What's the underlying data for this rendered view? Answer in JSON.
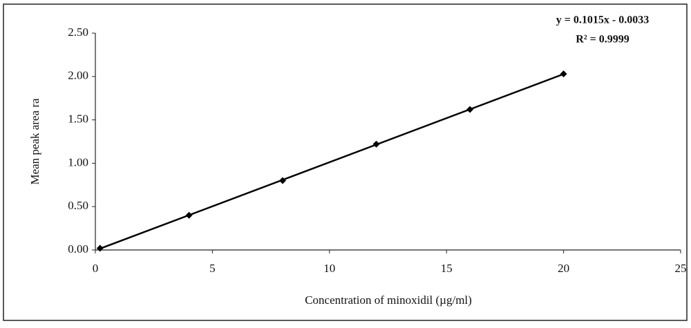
{
  "chart_data": {
    "type": "scatter",
    "x_label": "Concentration of minoxidil (µg/ml)",
    "y_label": "Mean peak area ra",
    "annotations": [
      "y = 0.1015x - 0.0033",
      "R² = 0.9999"
    ],
    "series": [
      {
        "name": "Mean peak area ratio",
        "color": "#000000",
        "x": [
          0.2,
          4,
          8,
          12,
          16,
          20
        ],
        "values": [
          0.02,
          0.4,
          0.8,
          1.22,
          1.62,
          2.03
        ]
      }
    ],
    "trendline": true,
    "xlim": [
      0,
      25
    ],
    "xticks": [
      0,
      5,
      10,
      15,
      20,
      25
    ],
    "ylim": [
      0,
      2.5
    ],
    "yticks": [
      {
        "value": 0,
        "label": "0.00"
      },
      {
        "value": 0.5,
        "label": "0.50"
      },
      {
        "value": 1,
        "label": "1.00"
      },
      {
        "value": 1.5,
        "label": "1.50"
      },
      {
        "value": 2,
        "label": "2.00"
      },
      {
        "value": 2.5,
        "label": "2.50"
      }
    ]
  }
}
